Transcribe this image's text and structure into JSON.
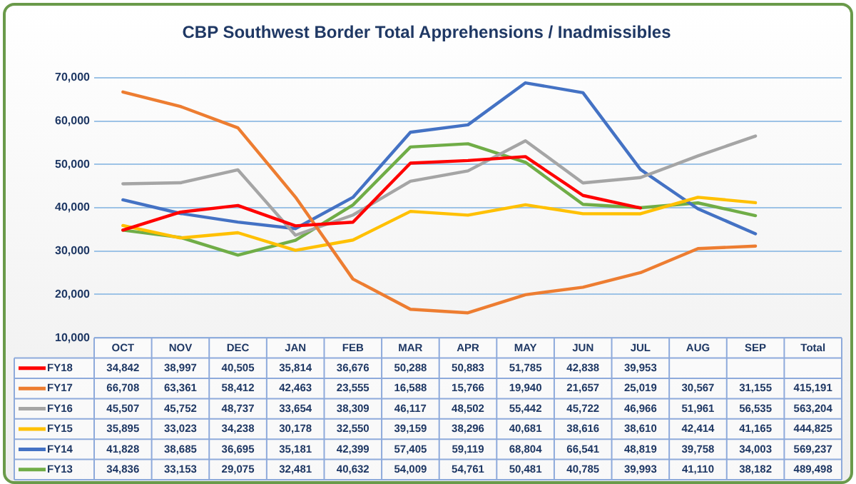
{
  "chart_data": {
    "type": "line",
    "title": "CBP Southwest Border Total Apprehensions / Inadmissibles",
    "categories": [
      "OCT",
      "NOV",
      "DEC",
      "JAN",
      "FEB",
      "MAR",
      "APR",
      "MAY",
      "JUN",
      "JUL",
      "AUG",
      "SEP",
      "Total"
    ],
    "series": [
      {
        "name": "FY18",
        "color": "#ff0000",
        "values": [
          34842,
          38997,
          40505,
          35814,
          36676,
          50288,
          50883,
          51785,
          42838,
          39953,
          null,
          null,
          null
        ],
        "value_labels": [
          "34,842",
          "38,997",
          "40,505",
          "35,814",
          "36,676",
          "50,288",
          "50,883",
          "51,785",
          "42,838",
          "39,953",
          null,
          null,
          null
        ]
      },
      {
        "name": "FY17",
        "color": "#ed7d31",
        "values": [
          66708,
          63361,
          58412,
          42463,
          23555,
          16588,
          15766,
          19940,
          21657,
          25019,
          30567,
          31155,
          null
        ],
        "value_labels": [
          "66,708",
          "63,361",
          "58,412",
          "42,463",
          "23,555",
          "16,588",
          "15,766",
          "19,940",
          "21,657",
          "25,019",
          "30,567",
          "31,155",
          "415,191"
        ]
      },
      {
        "name": "FY16",
        "color": "#a5a5a5",
        "values": [
          45507,
          45752,
          48737,
          33654,
          38309,
          46117,
          48502,
          55442,
          45722,
          46966,
          51961,
          56535,
          null
        ],
        "value_labels": [
          "45,507",
          "45,752",
          "48,737",
          "33,654",
          "38,309",
          "46,117",
          "48,502",
          "55,442",
          "45,722",
          "46,966",
          "51,961",
          "56,535",
          "563,204"
        ]
      },
      {
        "name": "FY15",
        "color": "#ffc000",
        "values": [
          35895,
          33023,
          34238,
          30178,
          32550,
          39159,
          38296,
          40681,
          38616,
          38610,
          42414,
          41165,
          null
        ],
        "value_labels": [
          "35,895",
          "33,023",
          "34,238",
          "30,178",
          "32,550",
          "39,159",
          "38,296",
          "40,681",
          "38,616",
          "38,610",
          "42,414",
          "41,165",
          "444,825"
        ]
      },
      {
        "name": "FY14",
        "color": "#4472c4",
        "values": [
          41828,
          38685,
          36695,
          35181,
          42399,
          57405,
          59119,
          68804,
          66541,
          48819,
          39758,
          34003,
          null
        ],
        "value_labels": [
          "41,828",
          "38,685",
          "36,695",
          "35,181",
          "42,399",
          "57,405",
          "59,119",
          "68,804",
          "66,541",
          "48,819",
          "39,758",
          "34,003",
          "569,237"
        ]
      },
      {
        "name": "FY13",
        "color": "#70ad47",
        "values": [
          34836,
          33153,
          29075,
          32481,
          40632,
          54009,
          54761,
          50481,
          40785,
          39993,
          41110,
          38182,
          null
        ],
        "value_labels": [
          "34,836",
          "33,153",
          "29,075",
          "32,481",
          "40,632",
          "54,009",
          "54,761",
          "50,481",
          "40,785",
          "39,993",
          "41,110",
          "38,182",
          "489,498"
        ]
      }
    ],
    "ylim": [
      10000,
      70000
    ],
    "yticks": [
      {
        "value": 10000,
        "label": "10,000"
      },
      {
        "value": 20000,
        "label": "20,000"
      },
      {
        "value": 30000,
        "label": "30,000"
      },
      {
        "value": 40000,
        "label": "40,000"
      },
      {
        "value": 50000,
        "label": "50,000"
      },
      {
        "value": 60000,
        "label": "60,000"
      },
      {
        "value": 70000,
        "label": "70,000"
      }
    ],
    "grid": "y",
    "legend": "bottom",
    "marker": "none",
    "line_style": "solid"
  }
}
